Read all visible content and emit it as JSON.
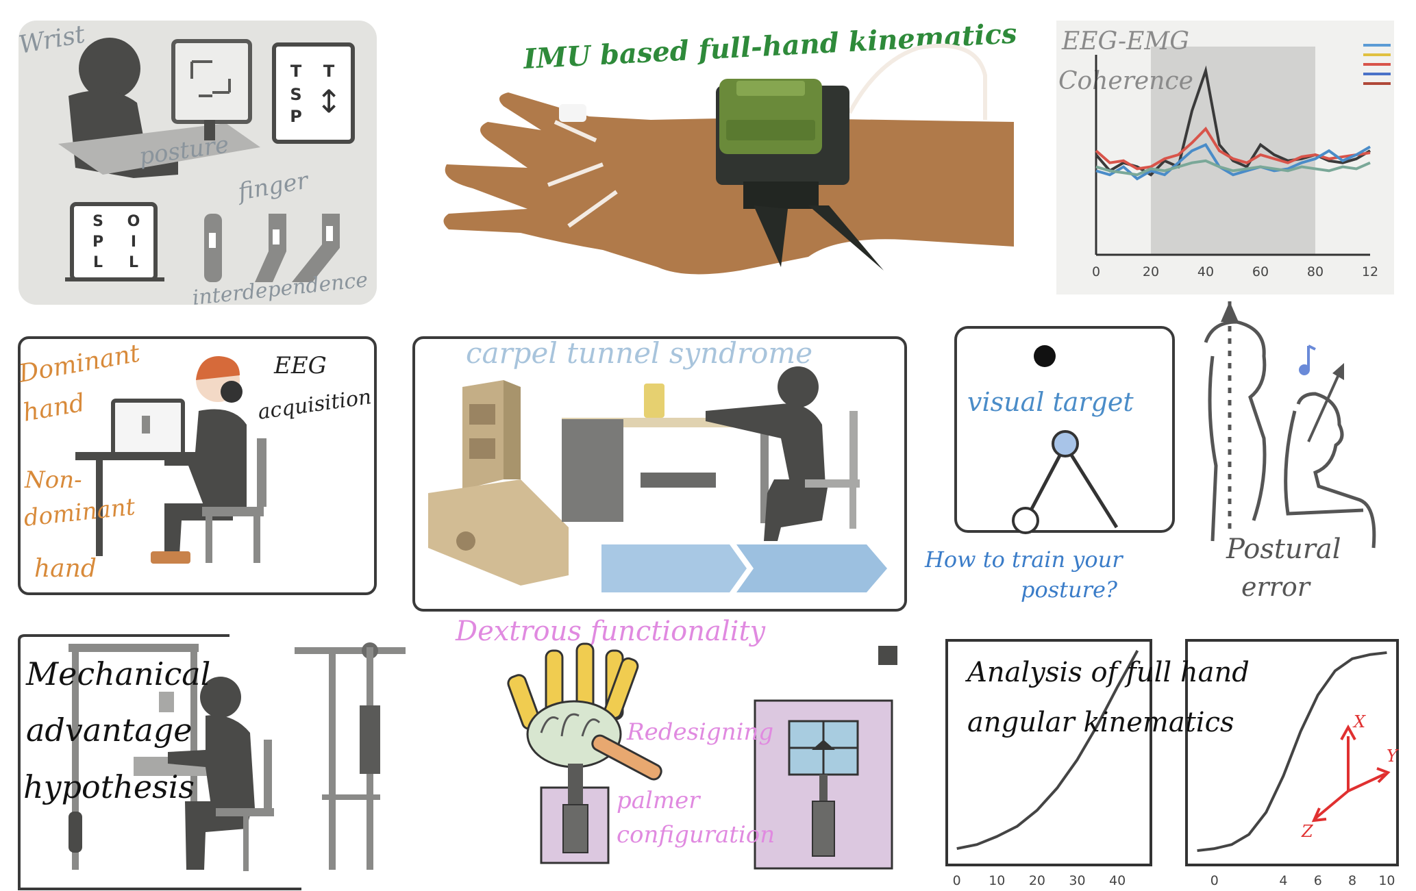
{
  "panel_wrist": {
    "label_wrist": "Wrist",
    "label_posture": "posture",
    "label_finger": "finger",
    "label_interdependence": "interdependence",
    "card_top": [
      "T",
      "S",
      "P",
      "T",
      "↕"
    ],
    "card_bottom": [
      "S",
      "P",
      "L",
      "O",
      "I",
      "L"
    ]
  },
  "panel_imu": {
    "title": "IMU based full-hand kinematics"
  },
  "panel_eeg_emg": {
    "title_line1": "EEG-EMG",
    "title_line2": "Coherence",
    "chart_data": {
      "type": "line",
      "x": [
        0,
        5,
        10,
        15,
        20,
        25,
        30,
        35,
        40,
        45,
        50,
        55,
        60,
        65,
        70,
        75,
        80,
        85,
        90,
        95,
        100
      ],
      "xticks": [
        "0",
        "20",
        "40",
        "60",
        "80",
        "12"
      ],
      "xlim": [
        0,
        100
      ],
      "ylim": [
        0,
        1
      ],
      "shaded_region": [
        20,
        80
      ],
      "series": [
        {
          "color": "#3a3a3a",
          "values": [
            0.5,
            0.42,
            0.46,
            0.44,
            0.4,
            0.47,
            0.44,
            0.72,
            0.92,
            0.55,
            0.47,
            0.44,
            0.55,
            0.5,
            0.47,
            0.48,
            0.5,
            0.47,
            0.46,
            0.48,
            0.52
          ]
        },
        {
          "color": "#d8544a",
          "values": [
            0.52,
            0.46,
            0.47,
            0.43,
            0.44,
            0.48,
            0.5,
            0.56,
            0.63,
            0.52,
            0.48,
            0.46,
            0.5,
            0.48,
            0.46,
            0.49,
            0.5,
            0.48,
            0.49,
            0.5,
            0.51
          ]
        },
        {
          "color": "#4a8cc8",
          "values": [
            0.42,
            0.4,
            0.44,
            0.38,
            0.42,
            0.4,
            0.46,
            0.52,
            0.55,
            0.44,
            0.4,
            0.42,
            0.44,
            0.42,
            0.43,
            0.46,
            0.48,
            0.52,
            0.47,
            0.5,
            0.54
          ]
        },
        {
          "color": "#7aa898",
          "values": [
            0.44,
            0.42,
            0.41,
            0.4,
            0.43,
            0.42,
            0.44,
            0.46,
            0.47,
            0.44,
            0.42,
            0.43,
            0.44,
            0.43,
            0.42,
            0.44,
            0.43,
            0.42,
            0.44,
            0.43,
            0.46
          ]
        }
      ],
      "legend_colors": [
        "#5b9bd5",
        "#e0c040",
        "#d8544a",
        "#4a72c8",
        "#b04838"
      ]
    }
  },
  "panel_eeg_acq": {
    "label_dominant_1": "Dominant",
    "label_dominant_2": "hand",
    "label_eeg_1": "EEG",
    "label_eeg_2": "acquisition",
    "label_nondom_1": "Non-",
    "label_nondom_2": "dominant",
    "label_nondom_3": "hand"
  },
  "panel_carpal": {
    "title": "carpel tunnel syndrome"
  },
  "panel_visual": {
    "label_target": "visual target",
    "question_1": "How to train your",
    "question_2": "posture?"
  },
  "panel_postural": {
    "label_1": "Postural",
    "label_2": "error"
  },
  "panel_mechanical": {
    "line1": "Mechanical",
    "line2": "advantage",
    "line3": "hypothesis"
  },
  "panel_dextrous": {
    "title": "Dextrous functionality",
    "label_redesign": "Redesigning",
    "label_palmer_1": "palmer",
    "label_palmer_2": "configuration"
  },
  "panel_analysis": {
    "line1": "Analysis of full hand",
    "line2": "angular kinematics",
    "chart_data": [
      {
        "type": "line",
        "x": [
          0,
          5,
          10,
          15,
          20,
          25,
          30,
          35,
          40,
          45
        ],
        "values": [
          0.02,
          0.04,
          0.08,
          0.13,
          0.21,
          0.32,
          0.46,
          0.63,
          0.82,
          1.0
        ],
        "xticks": [
          "0",
          "10",
          "20",
          "30",
          "40"
        ],
        "xlim": [
          -2,
          48
        ]
      },
      {
        "type": "line",
        "x": [
          -1,
          0,
          1,
          2,
          3,
          4,
          5,
          6,
          7,
          8,
          9,
          10
        ],
        "values": [
          0.01,
          0.02,
          0.04,
          0.09,
          0.2,
          0.38,
          0.6,
          0.78,
          0.9,
          0.96,
          0.98,
          0.99
        ],
        "xticks": [
          "0",
          "4",
          "6",
          "8",
          "10"
        ],
        "xlim": [
          -1.5,
          10.5
        ]
      }
    ],
    "axis_x": "X",
    "axis_y": "Y",
    "axis_z": "Z"
  }
}
